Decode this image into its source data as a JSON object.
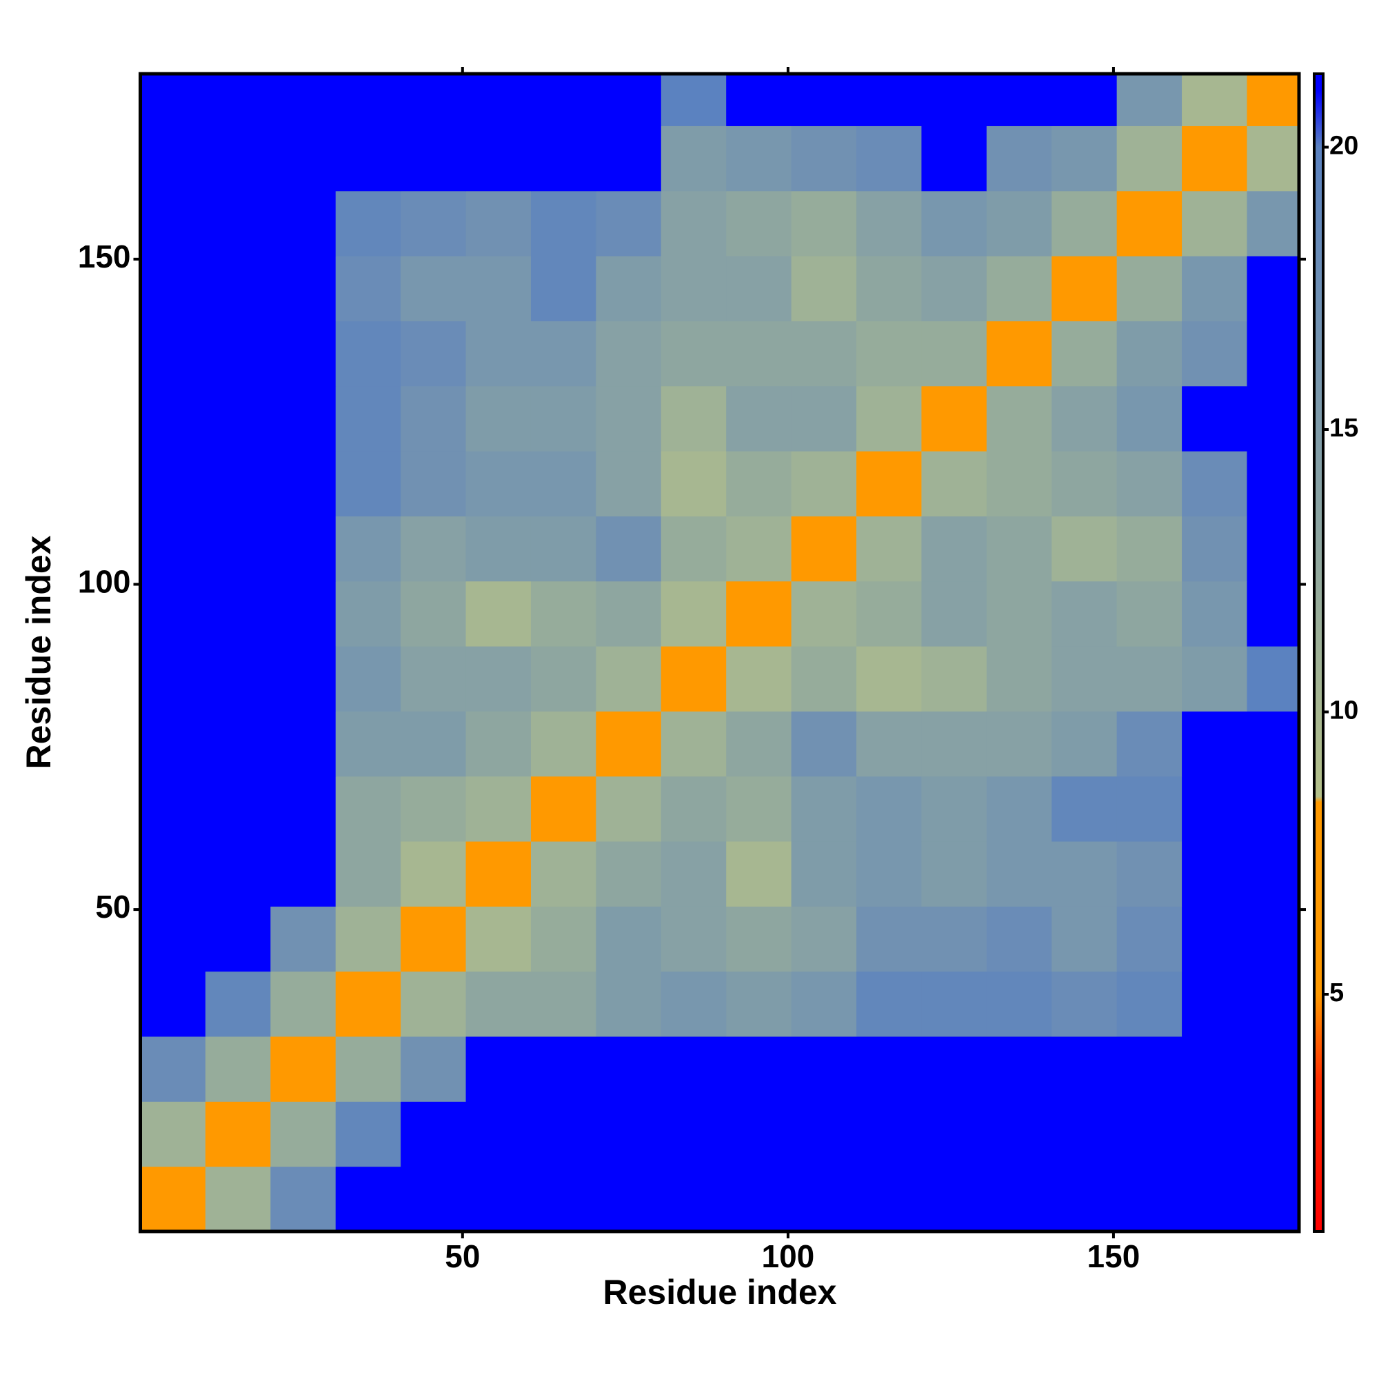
{
  "chart_data": {
    "type": "heatmap",
    "xlabel": "Residue index",
    "ylabel": "Residue index",
    "xbins": [
      0.5,
      10.5,
      20.5,
      30.5,
      40.5,
      50.5,
      60.5,
      70.5,
      80.5,
      90.5,
      100.5,
      110.5,
      120.5,
      130.5,
      140.5,
      150.5,
      160.5,
      170.5,
      178.5
    ],
    "ybins": [
      0.5,
      10.5,
      20.5,
      30.5,
      40.5,
      50.5,
      60.5,
      70.5,
      80.5,
      90.5,
      100.5,
      110.5,
      120.5,
      130.5,
      140.5,
      150.5,
      160.5,
      170.5,
      178.5
    ],
    "xlim": [
      0.5,
      178.5
    ],
    "ylim": [
      0.5,
      178.5
    ],
    "xticks": [
      50,
      100,
      150
    ],
    "yticks": [
      50,
      100,
      150
    ],
    "clim": [
      0.8,
      21.3
    ],
    "cticks": [
      5,
      10,
      15,
      20
    ],
    "colorscale": [
      [
        0.8,
        "#ff0000"
      ],
      [
        3.5,
        "#ff3000"
      ],
      [
        5,
        "#ff9900"
      ],
      [
        8.4,
        "#ff9900"
      ],
      [
        8.5,
        "#b4c08a"
      ],
      [
        13,
        "#8ea6a0"
      ],
      [
        20,
        "#5b82c0"
      ],
      [
        21,
        "#0000ff"
      ],
      [
        21.3,
        "#0000ff"
      ]
    ],
    "z": [
      [
        6,
        11,
        18,
        21,
        21,
        21,
        21,
        21,
        21,
        21,
        21,
        21,
        21,
        21,
        21,
        21,
        21,
        21
      ],
      [
        11,
        6,
        12,
        19,
        21,
        21,
        21,
        21,
        21,
        21,
        21,
        21,
        21,
        21,
        21,
        21,
        21,
        21
      ],
      [
        18,
        12,
        6,
        12,
        17,
        21,
        21,
        21,
        21,
        21,
        21,
        21,
        21,
        21,
        21,
        21,
        21,
        21
      ],
      [
        21,
        19,
        12,
        6,
        11,
        13,
        13,
        15,
        16,
        15,
        16,
        19,
        19,
        19,
        18,
        19,
        21,
        21
      ],
      [
        21,
        21,
        17,
        11,
        6,
        10,
        12,
        15,
        14,
        13,
        14,
        17,
        17,
        18,
        16,
        18,
        21,
        21
      ],
      [
        21,
        21,
        21,
        13,
        10,
        6,
        11,
        13,
        14,
        10,
        15,
        16,
        15,
        16,
        16,
        17,
        21,
        21
      ],
      [
        21,
        21,
        21,
        13,
        12,
        11,
        6,
        11,
        13,
        12,
        15,
        16,
        15,
        16,
        19,
        19,
        21,
        21
      ],
      [
        21,
        21,
        21,
        15,
        15,
        13,
        11,
        6,
        11,
        13,
        17,
        14,
        14,
        14,
        15,
        18,
        21,
        21
      ],
      [
        21,
        21,
        21,
        16,
        14,
        14,
        13,
        11,
        6,
        10,
        12,
        10,
        11,
        13,
        14,
        14,
        15,
        20
      ],
      [
        21,
        21,
        21,
        15,
        13,
        10,
        12,
        13,
        10,
        6,
        11,
        12,
        14,
        13,
        14,
        13,
        16,
        21
      ],
      [
        21,
        21,
        21,
        16,
        14,
        15,
        15,
        17,
        12,
        11,
        6,
        11,
        14,
        13,
        11,
        12,
        17,
        21
      ],
      [
        21,
        21,
        21,
        19,
        17,
        16,
        16,
        14,
        10,
        12,
        11,
        6,
        11,
        12,
        13,
        14,
        18,
        21
      ],
      [
        21,
        21,
        21,
        19,
        17,
        15,
        15,
        14,
        11,
        14,
        14,
        11,
        6,
        12,
        14,
        16,
        21,
        21
      ],
      [
        21,
        21,
        21,
        19,
        18,
        16,
        16,
        14,
        13,
        13,
        13,
        12,
        12,
        6,
        12,
        15,
        17,
        21
      ],
      [
        21,
        21,
        21,
        18,
        16,
        16,
        19,
        15,
        14,
        14,
        11,
        13,
        14,
        12,
        6,
        12,
        16,
        21
      ],
      [
        21,
        21,
        21,
        19,
        18,
        17,
        19,
        18,
        14,
        13,
        12,
        14,
        16,
        15,
        12,
        6,
        11,
        16
      ],
      [
        21,
        21,
        21,
        21,
        21,
        21,
        21,
        21,
        15,
        16,
        17,
        18,
        21,
        17,
        16,
        11,
        6,
        10
      ],
      [
        21,
        21,
        21,
        21,
        21,
        21,
        21,
        21,
        20,
        21,
        21,
        21,
        21,
        21,
        21,
        16,
        10,
        6
      ]
    ]
  }
}
